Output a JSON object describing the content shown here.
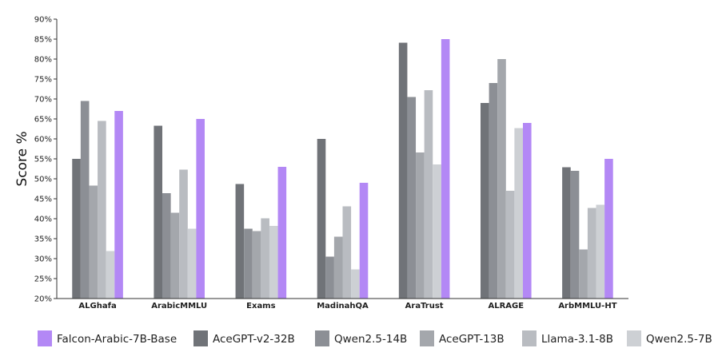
{
  "chart_data": {
    "type": "bar",
    "ylabel": "Score %",
    "ylim": [
      20,
      90
    ],
    "ytick_step": 5,
    "ytick_suffix": "%",
    "grid": false,
    "legend_position": "bottom",
    "categories": [
      "ALGhafa",
      "ArabicMMLU",
      "Exams",
      "MadinahQA",
      "AraTrust",
      "ALRAGE",
      "ArbMMLU-HT"
    ],
    "series_draw_order": [
      "AceGPT-v2-32B",
      "Qwen2.5-14B",
      "AceGPT-13B",
      "Llama-3.1-8B",
      "Qwen2.5-7B",
      "Falcon-Arabic-7B-Base"
    ],
    "series": [
      {
        "name": "Falcon-Arabic-7B-Base",
        "color": "#b388f5",
        "values": [
          67.0,
          65.0,
          53.0,
          49.0,
          85.0,
          64.0,
          55.0
        ]
      },
      {
        "name": "AceGPT-v2-32B",
        "color": "#707378",
        "values": [
          55.0,
          63.3,
          48.7,
          60.0,
          84.1,
          69.0,
          52.9
        ]
      },
      {
        "name": "Qwen2.5-14B",
        "color": "#8c8f95",
        "values": [
          69.5,
          46.4,
          37.5,
          30.5,
          70.5,
          74.0,
          52.0
        ]
      },
      {
        "name": "AceGPT-13B",
        "color": "#a4a7ac",
        "values": [
          48.3,
          41.5,
          36.9,
          35.5,
          56.6,
          80.0,
          32.3
        ]
      },
      {
        "name": "Llama-3.1-8B",
        "color": "#b9bcc1",
        "values": [
          64.5,
          52.3,
          40.1,
          43.1,
          72.2,
          47.0,
          42.7
        ]
      },
      {
        "name": "Qwen2.5-7B",
        "color": "#cdd0d4",
        "values": [
          31.9,
          37.5,
          38.2,
          27.3,
          53.6,
          62.7,
          43.5
        ]
      }
    ]
  }
}
